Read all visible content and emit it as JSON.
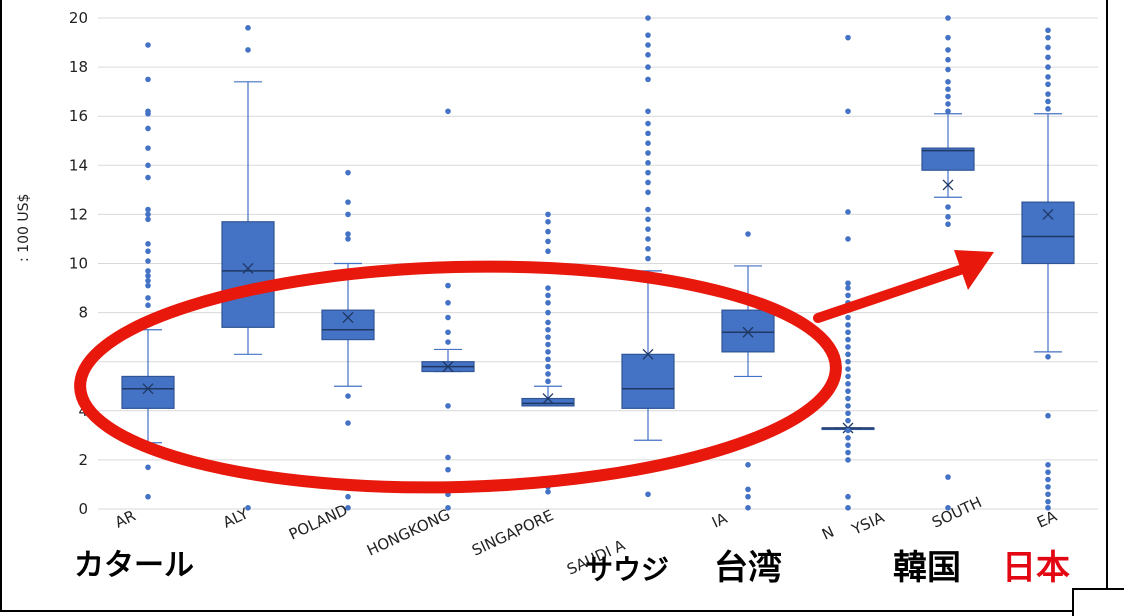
{
  "chart_data": {
    "type": "box",
    "ylabel": ": 100 US$",
    "ylim": [
      0,
      20
    ],
    "yticks": [
      0,
      2,
      4,
      6,
      8,
      10,
      12,
      14,
      16,
      18,
      20
    ],
    "ytick_labels": [
      "0",
      "2",
      "4",
      "",
      "8",
      "10",
      "12",
      "14",
      "16",
      "18",
      "20"
    ],
    "grid": true,
    "categories": [
      "QATAR",
      "ITALY",
      "POLAND",
      "HONGKONG",
      "SINGAPORE",
      "SAUDI ARABIA",
      "TAIWAN",
      "MALAYSIA",
      "SOUTH KOREA",
      "JAPAN"
    ],
    "category_labels_visible": [
      "AR",
      "ALY",
      "POLAND",
      "HONGKONG",
      "SINGAPORE",
      "SAUDI A",
      "IA",
      "N",
      "YSIA",
      "SOUTH",
      "EA",
      "N"
    ],
    "boxes": [
      {
        "min": 2.7,
        "q1": 4.1,
        "median": 4.9,
        "q3": 5.4,
        "max": 7.3,
        "mean": 4.9,
        "outliers": [
          0.5,
          1.7,
          7.6,
          8.3,
          8.6,
          9.1,
          9.3,
          9.5,
          9.7,
          10.1,
          10.5,
          10.8,
          11.8,
          12.0,
          12.2,
          13.5,
          14.0,
          14.7,
          15.5,
          16.1,
          16.2,
          17.5,
          18.9
        ]
      },
      {
        "min": 6.3,
        "q1": 7.4,
        "median": 9.7,
        "q3": 11.7,
        "max": 17.4,
        "mean": 9.8,
        "outliers": [
          0.05,
          18.7,
          19.6
        ]
      },
      {
        "min": 5.0,
        "q1": 6.9,
        "median": 7.3,
        "q3": 8.1,
        "max": 10.0,
        "mean": 7.8,
        "outliers": [
          0.05,
          0.5,
          0.85,
          1.1,
          3.5,
          4.6,
          11.0,
          11.2,
          12.0,
          12.5,
          13.7
        ]
      },
      {
        "min": 5.6,
        "q1": 5.6,
        "median": 5.8,
        "q3": 6.0,
        "max": 6.5,
        "mean": 5.8,
        "outliers": [
          0.05,
          0.6,
          1.6,
          2.1,
          4.2,
          6.8,
          7.2,
          7.8,
          8.4,
          9.1,
          16.2
        ]
      },
      {
        "min": 4.2,
        "q1": 4.2,
        "median": 4.3,
        "q3": 4.5,
        "max": 5.0,
        "mean": 4.5,
        "outliers": [
          0.7,
          0.9,
          5.2,
          5.5,
          5.8,
          6.1,
          6.4,
          6.7,
          7.0,
          7.3,
          7.6,
          8.0,
          8.4,
          8.7,
          9.0,
          10.5,
          10.9,
          11.3,
          11.7,
          12.0
        ]
      },
      {
        "min": 2.8,
        "q1": 4.1,
        "median": 4.9,
        "q3": 6.3,
        "max": 9.7,
        "mean": 6.3,
        "outliers": [
          0.6,
          10.2,
          10.6,
          11.0,
          11.4,
          11.8,
          12.2,
          12.9,
          13.3,
          13.7,
          14.1,
          14.5,
          14.9,
          15.3,
          15.7,
          16.2,
          17.5,
          18.0,
          18.5,
          18.9,
          19.3,
          20.0
        ]
      },
      {
        "min": 5.4,
        "q1": 6.4,
        "median": 7.2,
        "q3": 8.1,
        "max": 9.9,
        "mean": 7.2,
        "outliers": [
          0.05,
          0.5,
          0.8,
          1.8,
          11.2
        ]
      },
      {
        "min": 3.3,
        "q1": 3.3,
        "median": 3.3,
        "q3": 3.3,
        "max": 3.3,
        "mean": 3.3,
        "outliers": [
          0.05,
          0.5,
          2.0,
          2.3,
          2.6,
          2.9,
          3.2,
          3.6,
          3.9,
          4.2,
          4.5,
          4.8,
          5.1,
          5.4,
          5.7,
          6.0,
          6.3,
          6.6,
          6.9,
          7.2,
          7.5,
          7.8,
          8.1,
          8.4,
          8.7,
          9.0,
          9.2,
          11.0,
          12.1,
          16.2,
          19.2
        ]
      },
      {
        "min": 12.7,
        "q1": 13.8,
        "median": 14.6,
        "q3": 14.7,
        "max": 16.1,
        "mean": 13.2,
        "outliers": [
          0.05,
          1.3,
          11.6,
          11.9,
          12.3,
          16.2,
          16.5,
          16.8,
          17.1,
          17.4,
          17.9,
          18.3,
          18.7,
          19.2,
          20.0
        ]
      },
      {
        "min": 6.4,
        "q1": 10.0,
        "median": 11.1,
        "q3": 12.5,
        "max": 16.1,
        "mean": 12.0,
        "outliers": [
          0.05,
          0.3,
          0.6,
          0.9,
          1.2,
          1.5,
          1.8,
          3.8,
          6.2,
          16.3,
          16.6,
          16.9,
          17.3,
          17.6,
          18.0,
          18.4,
          18.8,
          19.2,
          19.5
        ]
      }
    ],
    "annotations": {
      "overlay_labels": [
        "カタール",
        "サウジ",
        "台湾",
        "韓国",
        "日本"
      ],
      "overlay_colors": [
        "#000000",
        "#000000",
        "#000000",
        "#000000",
        "#e30613"
      ]
    },
    "colors": {
      "box": "#4472c4",
      "box_edge": "#2f5597",
      "mark": "#e8180c",
      "grid": "#d9d9d9"
    }
  }
}
